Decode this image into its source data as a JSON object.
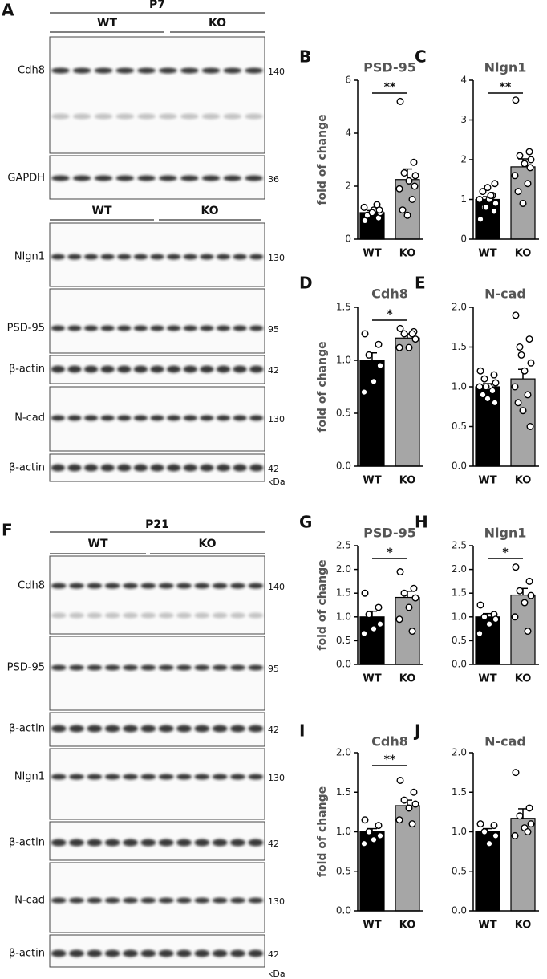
{
  "blot_panels": [
    {
      "panel": "A",
      "age": "P7",
      "unit": "kDa",
      "sections": [
        {
          "groups": [
            "WT",
            "KO"
          ],
          "rows": [
            {
              "label": "Cdh8",
              "marker": "140"
            },
            {
              "label": "GAPDH",
              "marker": "36"
            }
          ]
        },
        {
          "groups": [
            "WT",
            "KO"
          ],
          "rows": [
            {
              "label": "Nlgn1",
              "marker": "130"
            },
            {
              "label": "PSD-95",
              "marker": "95"
            },
            {
              "label": "β-actin",
              "marker": "42"
            },
            {
              "label": "N-cad",
              "marker": "130"
            },
            {
              "label": "β-actin",
              "marker": "42"
            }
          ]
        }
      ]
    },
    {
      "panel": "F",
      "age": "P21",
      "unit": "kDa",
      "sections": [
        {
          "groups": [
            "WT",
            "KO"
          ],
          "rows": [
            {
              "label": "Cdh8",
              "marker": "140"
            },
            {
              "label": "PSD-95",
              "marker": "95"
            },
            {
              "label": "β-actin",
              "marker": "42"
            },
            {
              "label": "Nlgn1",
              "marker": "130"
            },
            {
              "label": "β-actin",
              "marker": "42"
            },
            {
              "label": "N-cad",
              "marker": "130"
            },
            {
              "label": "β-actin",
              "marker": "42"
            }
          ]
        }
      ]
    }
  ],
  "chart_data": [
    {
      "type": "bar",
      "panel": "B",
      "title": "PSD-95",
      "y_label": "fold of change",
      "categories": [
        "WT",
        "KO"
      ],
      "values": [
        1.0,
        2.25
      ],
      "errors": [
        0.08,
        0.4
      ],
      "colors": [
        "#000000",
        "#a6a6a6"
      ],
      "points": [
        [
          0.7,
          0.8,
          0.9,
          1.0,
          1.1,
          1.2,
          1.3,
          0.9,
          1.0,
          1.1
        ],
        [
          5.2,
          2.9,
          2.5,
          2.4,
          2.2,
          1.9,
          1.5,
          1.1,
          0.9,
          2.0
        ]
      ],
      "significance": "**",
      "ylim": [
        0,
        6
      ],
      "yticks": [
        0,
        2,
        4,
        6
      ]
    },
    {
      "type": "bar",
      "panel": "C",
      "title": "Nlgn1",
      "categories": [
        "WT",
        "KO"
      ],
      "values": [
        1.0,
        1.82
      ],
      "errors": [
        0.07,
        0.2
      ],
      "colors": [
        "#000000",
        "#a6a6a6"
      ],
      "points": [
        [
          0.5,
          0.7,
          0.8,
          0.9,
          1.0,
          1.0,
          1.1,
          1.2,
          1.3,
          1.4,
          0.8,
          1.1
        ],
        [
          3.5,
          2.2,
          2.1,
          2.0,
          1.9,
          1.6,
          1.4,
          1.2,
          0.9,
          1.8
        ]
      ],
      "significance": "**",
      "ylim": [
        0,
        4
      ],
      "yticks": [
        0,
        1,
        2,
        3,
        4
      ]
    },
    {
      "type": "bar",
      "panel": "D",
      "title": "Cdh8",
      "y_label": "fold of change",
      "categories": [
        "WT",
        "KO"
      ],
      "values": [
        1.0,
        1.21
      ],
      "errors": [
        0.07,
        0.04
      ],
      "colors": [
        "#000000",
        "#a6a6a6"
      ],
      "points": [
        [
          1.25,
          1.15,
          1.05,
          0.95,
          0.8,
          0.7
        ],
        [
          1.3,
          1.27,
          1.25,
          1.2,
          1.12,
          1.12,
          1.25
        ]
      ],
      "significance": "*",
      "ylim": [
        0,
        1.5
      ],
      "yticks": [
        {
          "value": 0,
          "label": "0.0"
        },
        {
          "value": 0.5,
          "label": "0.5"
        },
        {
          "value": 1,
          "label": "1.0"
        },
        {
          "value": 1.5,
          "label": "1.5"
        }
      ]
    },
    {
      "type": "bar",
      "panel": "E",
      "title": "N-cad",
      "categories": [
        "WT",
        "KO"
      ],
      "values": [
        1.0,
        1.1
      ],
      "errors": [
        0.04,
        0.12
      ],
      "colors": [
        "#000000",
        "#a6a6a6"
      ],
      "points": [
        [
          1.2,
          1.15,
          1.1,
          1.05,
          1.0,
          1.0,
          0.95,
          0.9,
          0.85,
          0.8,
          1.0
        ],
        [
          1.9,
          1.6,
          1.5,
          1.3,
          1.2,
          1.0,
          0.9,
          0.8,
          0.7,
          0.5,
          1.4
        ]
      ],
      "ylim": [
        0,
        2
      ],
      "yticks": [
        {
          "value": 0,
          "label": "0.0"
        },
        {
          "value": 0.5,
          "label": "0.5"
        },
        {
          "value": 1,
          "label": "1.0"
        },
        {
          "value": 1.5,
          "label": "1.5"
        },
        {
          "value": 2,
          "label": "2.0"
        }
      ]
    },
    {
      "type": "bar",
      "panel": "G",
      "title": "PSD-95",
      "y_label": "fold of change",
      "categories": [
        "WT",
        "KO"
      ],
      "values": [
        1.0,
        1.41
      ],
      "errors": [
        0.12,
        0.13
      ],
      "colors": [
        "#000000",
        "#a6a6a6"
      ],
      "points": [
        [
          1.5,
          1.2,
          1.05,
          0.85,
          0.75,
          0.65
        ],
        [
          1.95,
          1.6,
          1.5,
          1.4,
          1.2,
          0.95,
          0.7
        ]
      ],
      "significance": "*",
      "ylim": [
        0,
        2.5
      ],
      "yticks": [
        {
          "value": 0,
          "label": "0.0"
        },
        {
          "value": 0.5,
          "label": "0.5"
        },
        {
          "value": 1,
          "label": "1.0"
        },
        {
          "value": 1.5,
          "label": "1.5"
        },
        {
          "value": 2,
          "label": "2.0"
        },
        {
          "value": 2.5,
          "label": "2.5"
        }
      ]
    },
    {
      "type": "bar",
      "panel": "H",
      "title": "Nlgn1",
      "categories": [
        "WT",
        "KO"
      ],
      "values": [
        1.0,
        1.46
      ],
      "errors": [
        0.07,
        0.14
      ],
      "colors": [
        "#000000",
        "#a6a6a6"
      ],
      "points": [
        [
          1.25,
          1.05,
          1.0,
          0.95,
          0.85,
          0.65
        ],
        [
          2.05,
          1.75,
          1.55,
          1.45,
          1.3,
          1.0,
          0.7
        ]
      ],
      "significance": "*",
      "ylim": [
        0,
        2.5
      ],
      "yticks": [
        {
          "value": 0,
          "label": "0.0"
        },
        {
          "value": 0.5,
          "label": "0.5"
        },
        {
          "value": 1,
          "label": "1.0"
        },
        {
          "value": 1.5,
          "label": "1.5"
        },
        {
          "value": 2,
          "label": "2.0"
        },
        {
          "value": 2.5,
          "label": "2.5"
        }
      ]
    },
    {
      "type": "bar",
      "panel": "I",
      "title": "Cdh8",
      "y_label": "fold of change",
      "categories": [
        "WT",
        "KO"
      ],
      "values": [
        1.0,
        1.33
      ],
      "errors": [
        0.04,
        0.07
      ],
      "colors": [
        "#000000",
        "#a6a6a6"
      ],
      "points": [
        [
          1.15,
          1.08,
          1.0,
          0.95,
          0.9,
          0.85
        ],
        [
          1.65,
          1.5,
          1.4,
          1.35,
          1.3,
          1.15,
          1.1
        ]
      ],
      "significance": "**",
      "ylim": [
        0,
        2
      ],
      "yticks": [
        {
          "value": 0,
          "label": "0.0"
        },
        {
          "value": 0.5,
          "label": "0.5"
        },
        {
          "value": 1,
          "label": "1.0"
        },
        {
          "value": 1.5,
          "label": "1.5"
        },
        {
          "value": 2,
          "label": "2.0"
        }
      ]
    },
    {
      "type": "bar",
      "panel": "J",
      "title": "N-cad",
      "categories": [
        "WT",
        "KO"
      ],
      "values": [
        1.0,
        1.17
      ],
      "errors": [
        0.04,
        0.12
      ],
      "colors": [
        "#000000",
        "#a6a6a6"
      ],
      "points": [
        [
          1.1,
          1.08,
          1.0,
          0.95,
          0.85
        ],
        [
          1.75,
          1.3,
          1.2,
          1.1,
          1.05,
          0.95,
          1.0
        ]
      ],
      "ylim": [
        0,
        2
      ],
      "yticks": [
        {
          "value": 0,
          "label": "0.0"
        },
        {
          "value": 0.5,
          "label": "0.5"
        },
        {
          "value": 1,
          "label": "1.0"
        },
        {
          "value": 1.5,
          "label": "1.5"
        },
        {
          "value": 2,
          "label": "2.0"
        }
      ]
    }
  ]
}
